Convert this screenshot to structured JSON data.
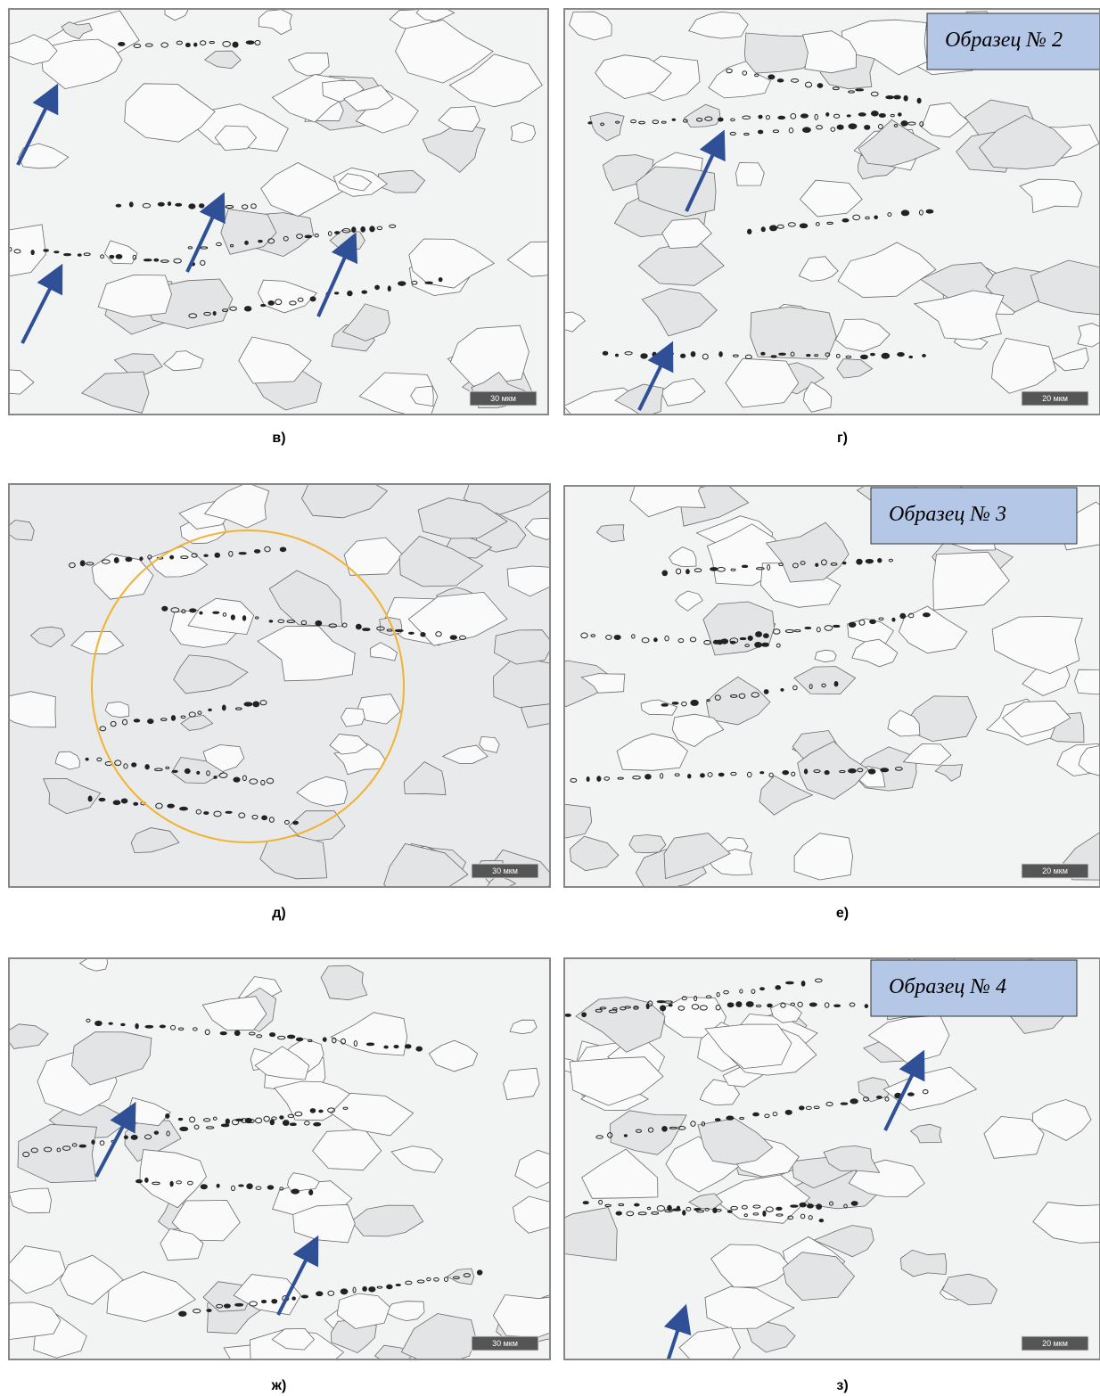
{
  "panels": [
    {
      "caption": "в)",
      "scale_bar": "30 мкм"
    },
    {
      "caption": "г)",
      "scale_bar": "20 мкм",
      "sample_label": "Образец № 2"
    },
    {
      "caption": "д)",
      "scale_bar": "30 мкм"
    },
    {
      "caption": "е)",
      "scale_bar": "20 мкм",
      "sample_label": "Образец № 3"
    },
    {
      "caption": "ж)",
      "scale_bar": "30 мкм"
    },
    {
      "caption": "з)",
      "scale_bar": "20 мкм",
      "sample_label": "Образец № 4"
    }
  ]
}
